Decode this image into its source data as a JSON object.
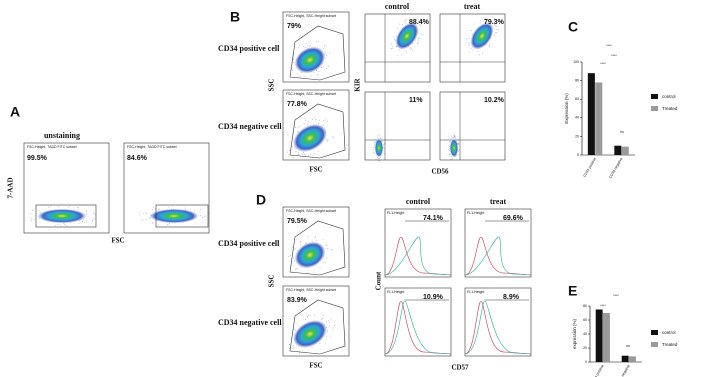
{
  "panels": {
    "A": {
      "label": "A",
      "title": "unstaining",
      "y_axis": "7-AAD",
      "x_axis": "FSC",
      "plots": [
        {
          "gate": "FSC-Height, 7ADD FITC subset",
          "percent": "99.5%"
        },
        {
          "gate": "FSC-Height, 7ADD FITC subset",
          "percent": "84.6%"
        }
      ]
    },
    "B": {
      "label": "B",
      "rows": [
        "CD34 positive cell",
        "CD34 negative cell"
      ],
      "columns": [
        "control",
        "treat"
      ],
      "gate_x_axis": "FSC",
      "gate_y_axis": "SSC",
      "x_axis": "CD56",
      "y_axis": "KIR",
      "gate_text": "FSC-Height, SSC-Height subset",
      "gate_percents": [
        "79%",
        "77.8%"
      ],
      "percents": [
        [
          "88.4%",
          "79.3%"
        ],
        [
          "11%",
          "10.2%"
        ]
      ]
    },
    "D": {
      "label": "D",
      "rows": [
        "CD34 positive cell",
        "CD34 negative cell"
      ],
      "columns": [
        "control",
        "treat"
      ],
      "gate_x_axis": "FSC",
      "gate_y_axis": "SSC",
      "x_axis": "CD57",
      "y_axis": "Count",
      "gate_text": "FSC-Height, SSC-Height subset",
      "hist_text": "FL1-Height",
      "gate_percents": [
        "79.5%",
        "83.9%"
      ],
      "percents": [
        [
          "74.1%",
          "69.6%"
        ],
        [
          "10.9%",
          "8.9%"
        ]
      ]
    }
  },
  "chart_data": [
    {
      "type": "bar",
      "label": "C",
      "y_label": "Expression (%)",
      "categories": [
        "CD34 positive",
        "CD34 negative"
      ],
      "series": [
        {
          "name": "control",
          "color": "#111111",
          "values": [
            88,
            10
          ]
        },
        {
          "name": "Treated",
          "color": "#9a9a9a",
          "values": [
            78,
            9
          ]
        }
      ],
      "ylim": [
        0,
        100
      ],
      "yticks": [
        0,
        20,
        40,
        60,
        80,
        100
      ],
      "annotations": [
        "****",
        "****",
        "****",
        "ns"
      ]
    },
    {
      "type": "bar",
      "label": "E",
      "y_label": "expression (%)",
      "categories": [
        "CD34 positive",
        "CD34 negative"
      ],
      "series": [
        {
          "name": "control",
          "color": "#111111",
          "values": [
            75,
            9
          ]
        },
        {
          "name": "Treated",
          "color": "#9a9a9a",
          "values": [
            70,
            8
          ]
        }
      ],
      "ylim": [
        0,
        80
      ],
      "yticks": [
        0,
        20,
        40,
        60,
        80
      ],
      "annotations": [
        "****",
        "****",
        "ns"
      ]
    }
  ]
}
